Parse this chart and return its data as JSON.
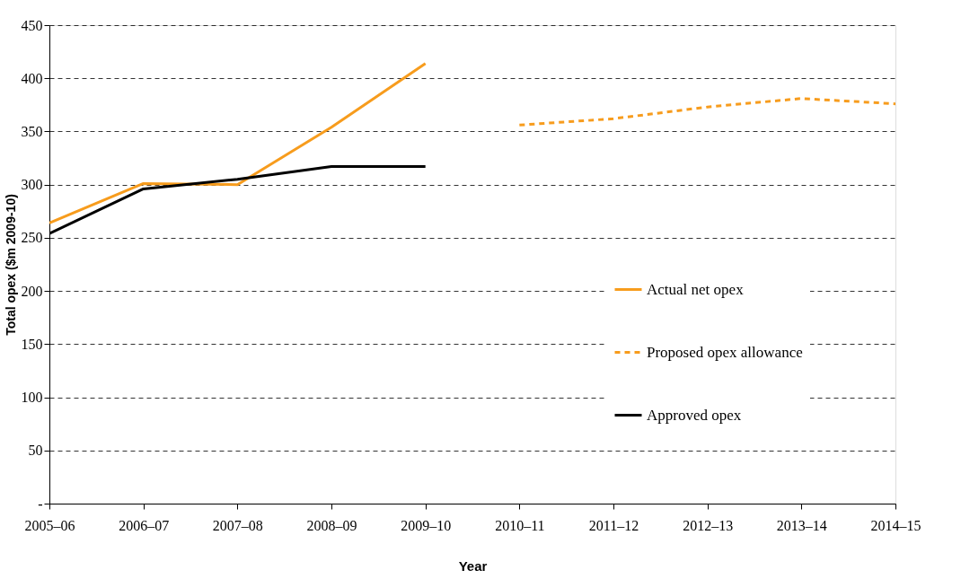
{
  "chart_data": {
    "type": "line",
    "xlabel": "Year",
    "ylabel": "Total opex ($m 2009-10)",
    "categories": [
      "2005–06",
      "2006–07",
      "2007–08",
      "2008–09",
      "2009–10",
      "2010–11",
      "2011–12",
      "2012–13",
      "2013–14",
      "2014–15"
    ],
    "series": [
      {
        "name": "Actual net opex",
        "color": "#f79c1d",
        "line_style": "solid",
        "values": [
          264,
          301,
          300,
          354,
          414,
          null,
          null,
          null,
          null,
          null
        ]
      },
      {
        "name": "Proposed opex allowance",
        "color": "#f79c1d",
        "line_style": "dashed",
        "values": [
          null,
          null,
          null,
          null,
          null,
          356,
          362,
          373,
          381,
          376
        ]
      },
      {
        "name": "Approved opex",
        "color": "#000000",
        "line_style": "solid",
        "values": [
          254,
          296,
          305,
          317,
          317,
          null,
          null,
          null,
          null,
          null
        ]
      }
    ],
    "ylim": [
      0,
      450
    ],
    "yticks": [
      {
        "value": 0,
        "label": "-"
      },
      50,
      100,
      150,
      200,
      250,
      300,
      350,
      400,
      450
    ],
    "grid": "y",
    "legend": "right",
    "marker": "none"
  }
}
